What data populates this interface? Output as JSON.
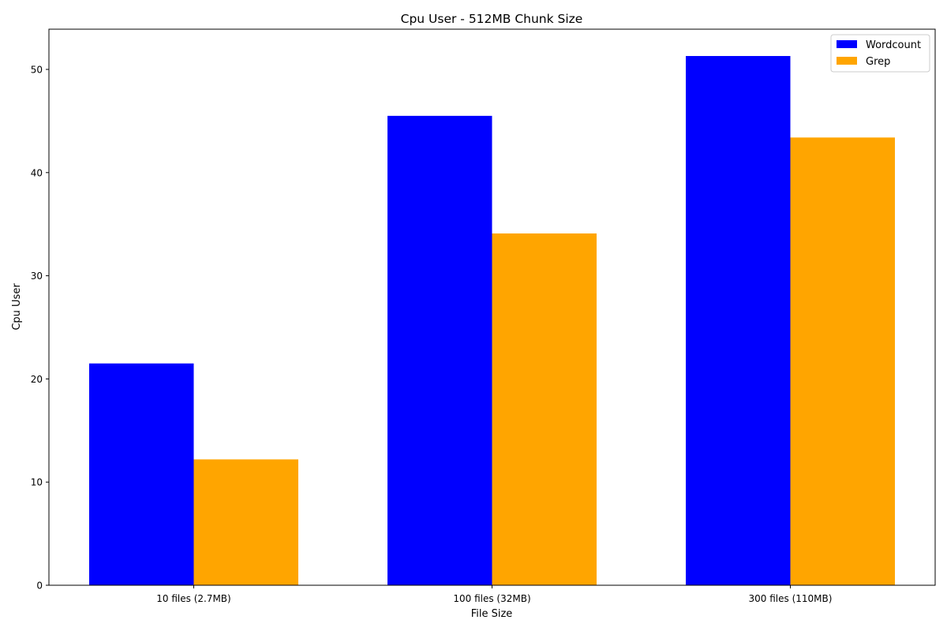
{
  "chart_data": {
    "type": "bar",
    "title": "Cpu User - 512MB Chunk Size",
    "xlabel": "File Size",
    "ylabel": "Cpu User",
    "categories": [
      "10 files (2.7MB)",
      "100 files (32MB)",
      "300 files (110MB)"
    ],
    "series": [
      {
        "name": "Wordcount",
        "color": "#0000ff",
        "values": [
          21.5,
          45.5,
          51.3
        ]
      },
      {
        "name": "Grep",
        "color": "#ffa500",
        "values": [
          12.2,
          34.1,
          43.4
        ]
      }
    ],
    "yticks": [
      0,
      10,
      20,
      30,
      40,
      50
    ],
    "ylim": [
      0,
      53.9
    ],
    "grid": false,
    "legend_position": "top-right"
  }
}
